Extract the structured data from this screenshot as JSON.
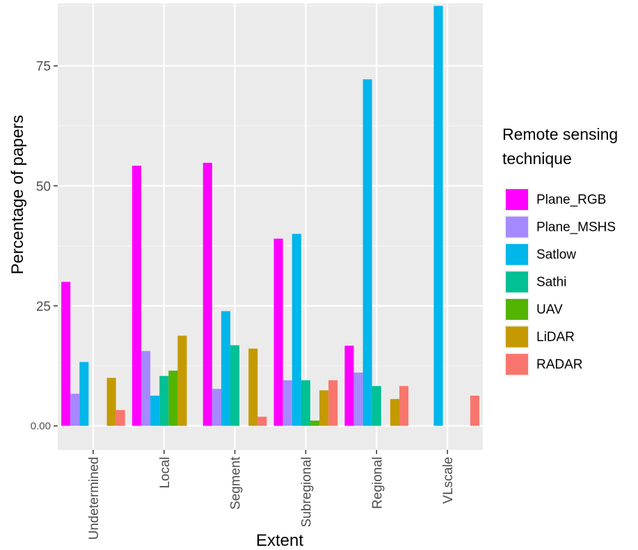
{
  "chart_data": {
    "type": "bar",
    "xlabel": "Extent",
    "ylabel": "Percentage of papers",
    "ylim": [
      -5,
      88
    ],
    "y_ticks": [
      {
        "value": 0,
        "label": "0.00"
      },
      {
        "value": 25,
        "label": "25"
      },
      {
        "value": 50,
        "label": "50"
      },
      {
        "value": 75,
        "label": "75"
      }
    ],
    "grid": true,
    "legend_placement": "right",
    "legend_title": [
      "Remote sensing",
      "technique"
    ],
    "categories": [
      "Undetermined",
      "Local",
      "Segment",
      "Subregional",
      "Regional",
      "VLscale"
    ],
    "series": [
      {
        "name": "Plane_RGB",
        "color": "#FF00FF",
        "values": [
          30,
          54.2,
          54.8,
          39,
          16.7,
          0
        ]
      },
      {
        "name": "Plane_MSHS",
        "color": "#A58AFF",
        "values": [
          6.7,
          15.6,
          7.7,
          9.5,
          11.1,
          0
        ]
      },
      {
        "name": "Satlow",
        "color": "#00B6EB",
        "values": [
          13.3,
          6.3,
          23.9,
          40,
          72.2,
          87.5
        ]
      },
      {
        "name": "Sathi",
        "color": "#00C094",
        "values": [
          0,
          10.4,
          16.8,
          9.5,
          8.3,
          0
        ]
      },
      {
        "name": "UAV",
        "color": "#53B400",
        "values": [
          0,
          11.5,
          0,
          1.1,
          0,
          0
        ]
      },
      {
        "name": "LiDAR",
        "color": "#C49A00",
        "values": [
          10,
          18.8,
          16.1,
          7.4,
          5.6,
          0
        ]
      },
      {
        "name": "RADAR",
        "color": "#F8766D",
        "values": [
          3.3,
          0,
          1.9,
          9.5,
          8.3,
          6.3
        ]
      }
    ]
  }
}
